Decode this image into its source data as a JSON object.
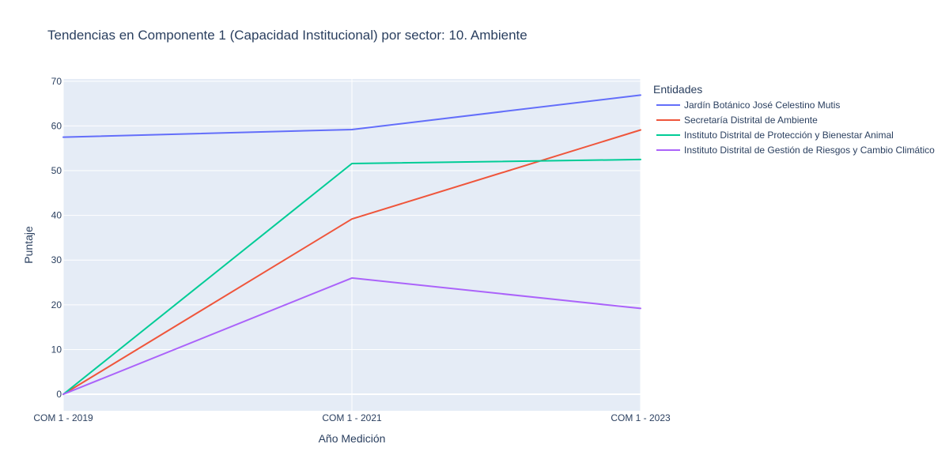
{
  "chart_data": {
    "type": "line",
    "title": "Tendencias en Componente 1 (Capacidad Institucional) por sector: 10. Ambiente",
    "xlabel": "Año Medición",
    "ylabel": "Puntaje",
    "categories": [
      "COM 1 - 2019",
      "COM 1 - 2021",
      "COM 1 - 2023"
    ],
    "ylim": [
      -3.7,
      70.5
    ],
    "yticks": [
      0,
      10,
      20,
      30,
      40,
      50,
      60,
      70
    ],
    "grid": true,
    "legend": {
      "title": "Entidades",
      "placement": "right"
    },
    "series": [
      {
        "name": "Jardín Botánico José Celestino Mutis",
        "values": [
          57.5,
          59.2,
          66.9
        ],
        "color": "#636efa"
      },
      {
        "name": "Secretaría Distrital de Ambiente",
        "values": [
          0,
          39.2,
          59.1
        ],
        "color": "#ef553b"
      },
      {
        "name": "Instituto Distrital de Protección y Bienestar Animal",
        "values": [
          0,
          51.6,
          52.5
        ],
        "color": "#00cc96"
      },
      {
        "name": "Instituto Distrital de Gestión de Riesgos y Cambio Climático",
        "values": [
          0,
          26.0,
          19.2
        ],
        "color": "#ab63fa"
      }
    ]
  }
}
